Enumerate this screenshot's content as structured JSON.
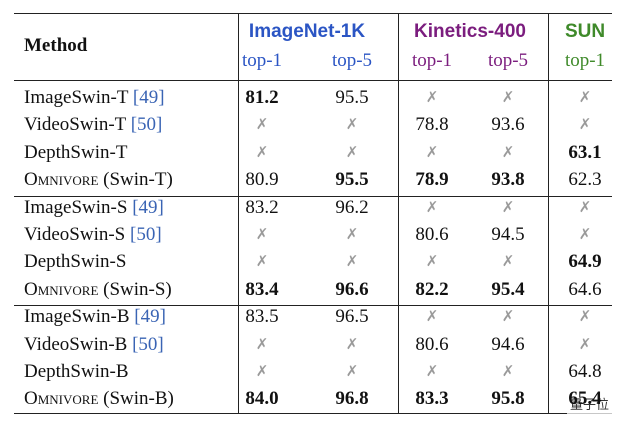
{
  "header": {
    "method": "Method",
    "groups": [
      {
        "name": "ImageNet-1K",
        "color": "#2b55c4",
        "columns": [
          "top-1",
          "top-5"
        ]
      },
      {
        "name": "Kinetics-400",
        "color": "#7b1d7e",
        "columns": [
          "top-1",
          "top-5"
        ]
      },
      {
        "name": "SUN",
        "color": "#3f8a2a",
        "columns": [
          "top-1"
        ]
      }
    ]
  },
  "sections": [
    {
      "rows": [
        {
          "method": "ImageSwin-T",
          "cite": "[49]",
          "cells": [
            {
              "text": "81.2",
              "bold": true
            },
            {
              "text": "95.5"
            },
            {
              "text": "✗"
            },
            {
              "text": "✗"
            },
            {
              "text": "✗"
            }
          ]
        },
        {
          "method": "VideoSwin-T",
          "cite": "[50]",
          "cells": [
            {
              "text": "✗"
            },
            {
              "text": "✗"
            },
            {
              "text": "78.8"
            },
            {
              "text": "93.6"
            },
            {
              "text": "✗"
            }
          ]
        },
        {
          "method": "DepthSwin-T",
          "cells": [
            {
              "text": "✗"
            },
            {
              "text": "✗"
            },
            {
              "text": "✗"
            },
            {
              "text": "✗"
            },
            {
              "text": "63.1",
              "bold": true
            }
          ]
        },
        {
          "method": "Omnivore",
          "small_caps": true,
          "detail": "(Swin-T)",
          "cells": [
            {
              "text": "80.9"
            },
            {
              "text": "95.5",
              "bold": true
            },
            {
              "text": "78.9",
              "bold": true
            },
            {
              "text": "93.8",
              "bold": true
            },
            {
              "text": "62.3"
            }
          ]
        }
      ]
    },
    {
      "rows": [
        {
          "method": "ImageSwin-S",
          "cite": "[49]",
          "cells": [
            {
              "text": "83.2"
            },
            {
              "text": "96.2"
            },
            {
              "text": "✗"
            },
            {
              "text": "✗"
            },
            {
              "text": "✗"
            }
          ]
        },
        {
          "method": "VideoSwin-S",
          "cite": "[50]",
          "cells": [
            {
              "text": "✗"
            },
            {
              "text": "✗"
            },
            {
              "text": "80.6"
            },
            {
              "text": "94.5"
            },
            {
              "text": "✗"
            }
          ]
        },
        {
          "method": "DepthSwin-S",
          "cells": [
            {
              "text": "✗"
            },
            {
              "text": "✗"
            },
            {
              "text": "✗"
            },
            {
              "text": "✗"
            },
            {
              "text": "64.9",
              "bold": true
            }
          ]
        },
        {
          "method": "Omnivore",
          "small_caps": true,
          "detail": "(Swin-S)",
          "cells": [
            {
              "text": "83.4",
              "bold": true
            },
            {
              "text": "96.6",
              "bold": true
            },
            {
              "text": "82.2",
              "bold": true
            },
            {
              "text": "95.4",
              "bold": true
            },
            {
              "text": "64.6"
            }
          ]
        }
      ]
    },
    {
      "rows": [
        {
          "method": "ImageSwin-B",
          "cite": "[49]",
          "cells": [
            {
              "text": "83.5"
            },
            {
              "text": "96.5"
            },
            {
              "text": "✗"
            },
            {
              "text": "✗"
            },
            {
              "text": "✗"
            }
          ]
        },
        {
          "method": "VideoSwin-B",
          "cite": "[50]",
          "cells": [
            {
              "text": "✗"
            },
            {
              "text": "✗"
            },
            {
              "text": "80.6"
            },
            {
              "text": "94.6"
            },
            {
              "text": "✗"
            }
          ]
        },
        {
          "method": "DepthSwin-B",
          "cells": [
            {
              "text": "✗"
            },
            {
              "text": "✗"
            },
            {
              "text": "✗"
            },
            {
              "text": "✗"
            },
            {
              "text": "64.8"
            }
          ]
        },
        {
          "method": "Omnivore",
          "small_caps": true,
          "detail": "(Swin-B)",
          "cells": [
            {
              "text": "84.0",
              "bold": true
            },
            {
              "text": "96.8",
              "bold": true
            },
            {
              "text": "83.3",
              "bold": true
            },
            {
              "text": "95.8",
              "bold": true
            },
            {
              "text": "65.4",
              "bold": true
            }
          ]
        }
      ]
    }
  ],
  "watermark": "量子位"
}
